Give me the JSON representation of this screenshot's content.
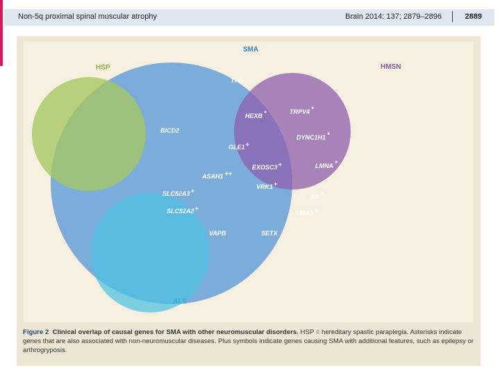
{
  "header": {
    "running_title": "Non-5q proximal spinal muscular atrophy",
    "citation": "Brain 2014: 137; 2879–2896",
    "page_number": "2889"
  },
  "diagram": {
    "sets": {
      "sma": {
        "label": "SMA",
        "color": "#5a9ad8"
      },
      "hsp": {
        "label": "HSP",
        "color": "#9bc25c"
      },
      "hmsn": {
        "label": "HMSN",
        "color": "#8e5fae"
      },
      "als": {
        "label": "ALS",
        "color": "#4cc0e0"
      }
    },
    "genes": {
      "tfg": "TFG",
      "hexb": "HEXB",
      "bicd2": "BICD2",
      "gle1": "GLE1",
      "asah1": "ASAH1",
      "exosc3": "EXOSC3",
      "slc52a3": "SLC52A3",
      "vrk1": "VRK1",
      "slc52a2": "SLC52A2",
      "trpv4": "TRPV4",
      "dync1h1": "DYNC1H1",
      "lmna": "LMNA",
      "ar": "AR",
      "uba1": "UBA1",
      "vapb": "VAPB",
      "setx": "SETX"
    },
    "marks": {
      "hexb": "*",
      "gle1": "+",
      "asah1": "++",
      "exosc3": "+",
      "slc52a3": "+",
      "vrk1": "+",
      "slc52a2": "+",
      "trpv4": "*",
      "dync1h1": "*",
      "lmna": "*",
      "ar": "*",
      "uba1": "+"
    }
  },
  "caption": {
    "label": "Figure 2",
    "title": "Clinical overlap of causal genes for SMA with other neuromuscular disorders.",
    "body": "HSP = hereditary spastic paraplegia. Asterisks indicate genes that are also associated with non-neuromuscular diseases. Plus symbols indicate genes causing SMA with additional features, such as epilepsy or arthrogryposis."
  }
}
